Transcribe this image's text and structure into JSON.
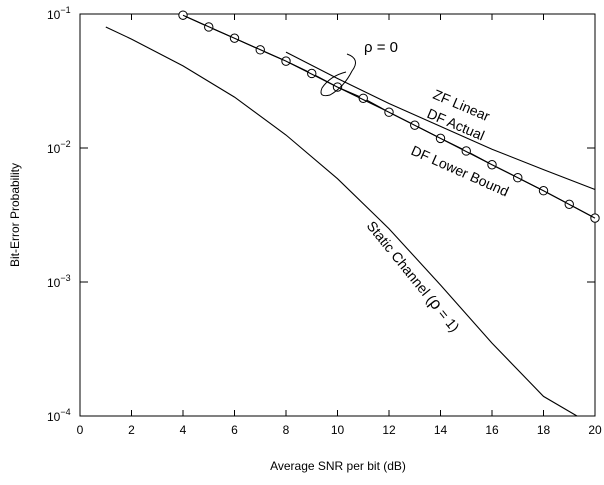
{
  "chart_data": {
    "type": "line",
    "xlabel": "Average SNR per bit   (dB)",
    "ylabel": "Bit-Error Probability",
    "xlim": [
      0,
      20
    ],
    "ylim": [
      0.0001,
      0.1
    ],
    "yscale": "log",
    "grid": false,
    "x_ticks": [
      "0",
      "2",
      "4",
      "6",
      "8",
      "10",
      "12",
      "14",
      "16",
      "18",
      "20"
    ],
    "y_ticks": [
      {
        "base": "10",
        "exp": "−1"
      },
      {
        "base": "10",
        "exp": "−2"
      },
      {
        "base": "10",
        "exp": "−3"
      },
      {
        "base": "10",
        "exp": "−4"
      }
    ],
    "annotation": "ρ = 0",
    "series": [
      {
        "name": "ZF Linear",
        "marker": "none",
        "x": [
          8,
          10,
          12,
          14,
          16,
          18,
          20
        ],
        "y": [
          0.052,
          0.033,
          0.0215,
          0.0145,
          0.0098,
          0.0069,
          0.0049
        ]
      },
      {
        "name": "DF Actual",
        "marker": "circle",
        "x": [
          4,
          5,
          6,
          7,
          8,
          9,
          10,
          11,
          12,
          13,
          14,
          15,
          16,
          17,
          18,
          19,
          20
        ],
        "y": [
          0.098,
          0.08,
          0.066,
          0.054,
          0.0445,
          0.036,
          0.0285,
          0.0235,
          0.0185,
          0.0148,
          0.0118,
          0.0095,
          0.0075,
          0.006,
          0.0048,
          0.0038,
          0.003
        ]
      },
      {
        "name": "DF Lower Bound",
        "marker": "none",
        "x": [
          4,
          6,
          8,
          10,
          12,
          14,
          16,
          18,
          20
        ],
        "y": [
          0.098,
          0.066,
          0.0445,
          0.0285,
          0.0185,
          0.0118,
          0.0075,
          0.0048,
          0.003
        ]
      },
      {
        "name": "Static Channel",
        "label_prefix": "Static Channel (",
        "label_rho": "ρ",
        "label_suffix": " = 1)",
        "marker": "none",
        "x": [
          1,
          2,
          4,
          6,
          8,
          10,
          12,
          14,
          16,
          18,
          19.3
        ],
        "y": [
          0.08,
          0.065,
          0.041,
          0.024,
          0.0125,
          0.0059,
          0.0025,
          0.00095,
          0.00035,
          0.00014,
          0.0001
        ]
      }
    ]
  }
}
